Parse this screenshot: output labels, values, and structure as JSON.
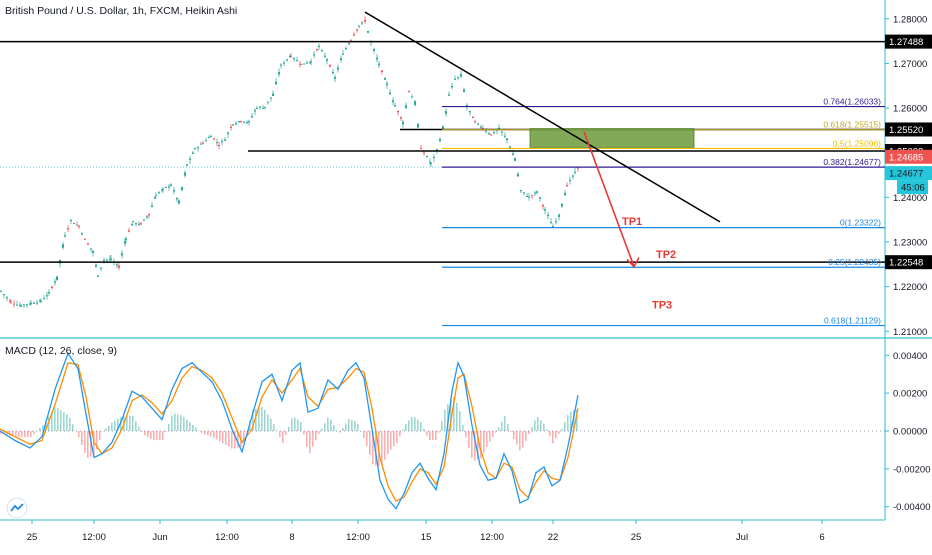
{
  "symbol_title": "British Pound / U.S. Dollar, 1h, FXCM, Heikin Ashi",
  "macd_title": "MACD (12, 26, close, 9)",
  "chart_data": [
    {
      "type": "candlestick",
      "title": "British Pound / U.S. Dollar, 1h, FXCM, Heikin Ashi",
      "x_ticks": [
        "25",
        "12:00",
        "Jun",
        "12:00",
        "8",
        "12:00",
        "15",
        "12:00",
        "22",
        "25",
        "Jul",
        "6"
      ],
      "y_ticks": [
        "1.28000",
        "1.27000",
        "1.26000",
        "1.25000",
        "1.24000",
        "1.23000",
        "1.22000",
        "1.21000"
      ],
      "y_range": [
        1.2085,
        1.2842
      ],
      "candles_path": [
        [
          0,
          1.219
        ],
        [
          10,
          1.2165
        ],
        [
          20,
          1.2158
        ],
        [
          30,
          1.2163
        ],
        [
          40,
          1.2168
        ],
        [
          48,
          1.2185
        ],
        [
          56,
          1.222
        ],
        [
          64,
          1.2315
        ],
        [
          70,
          1.2348
        ],
        [
          78,
          1.2335
        ],
        [
          84,
          1.2305
        ],
        [
          92,
          1.2278
        ],
        [
          97,
          1.2225
        ],
        [
          103,
          1.226
        ],
        [
          110,
          1.2262
        ],
        [
          118,
          1.2245
        ],
        [
          125,
          1.2308
        ],
        [
          132,
          1.2345
        ],
        [
          140,
          1.234
        ],
        [
          148,
          1.2362
        ],
        [
          155,
          1.2405
        ],
        [
          162,
          1.2418
        ],
        [
          170,
          1.2428
        ],
        [
          178,
          1.2388
        ],
        [
          186,
          1.2472
        ],
        [
          194,
          1.2508
        ],
        [
          202,
          1.2522
        ],
        [
          210,
          1.2538
        ],
        [
          218,
          1.2518
        ],
        [
          224,
          1.253
        ],
        [
          232,
          1.2565
        ],
        [
          240,
          1.2572
        ],
        [
          248,
          1.2568
        ],
        [
          256,
          1.2602
        ],
        [
          264,
          1.2602
        ],
        [
          272,
          1.263
        ],
        [
          280,
          1.2695
        ],
        [
          290,
          1.2718
        ],
        [
          300,
          1.2698
        ],
        [
          310,
          1.2705
        ],
        [
          318,
          1.2738
        ],
        [
          326,
          1.2708
        ],
        [
          334,
          1.2668
        ],
        [
          342,
          1.2722
        ],
        [
          350,
          1.2752
        ],
        [
          358,
          1.2785
        ],
        [
          364,
          1.2795
        ],
        [
          370,
          1.2748
        ],
        [
          378,
          1.2698
        ],
        [
          386,
          1.2652
        ],
        [
          394,
          1.2605
        ],
        [
          402,
          1.2568
        ],
        [
          408,
          1.2638
        ],
        [
          414,
          1.2612
        ],
        [
          420,
          1.2508
        ],
        [
          426,
          1.2492
        ],
        [
          430,
          1.2475
        ],
        [
          436,
          1.2505
        ],
        [
          442,
          1.2555
        ],
        [
          448,
          1.2628
        ],
        [
          454,
          1.2665
        ],
        [
          460,
          1.2672
        ],
        [
          466,
          1.2605
        ],
        [
          474,
          1.2568
        ],
        [
          482,
          1.2555
        ],
        [
          490,
          1.254
        ],
        [
          498,
          1.2555
        ],
        [
          506,
          1.253
        ],
        [
          514,
          1.2485
        ],
        [
          520,
          1.2415
        ],
        [
          528,
          1.24
        ],
        [
          536,
          1.2412
        ],
        [
          544,
          1.2372
        ],
        [
          552,
          1.2335
        ],
        [
          558,
          1.236
        ],
        [
          566,
          1.2425
        ],
        [
          574,
          1.2455
        ],
        [
          578,
          1.2468
        ]
      ],
      "horizontal_levels": [
        {
          "price": 1.27488,
          "label": "1.27488"
        },
        {
          "price": 1.2552,
          "label": "1.25520"
        },
        {
          "price": 1.25038,
          "label": "1.25038"
        },
        {
          "price": 1.22548,
          "label": "1.22548"
        }
      ],
      "price_badges": [
        {
          "price": 1.24685,
          "label": "1.24685",
          "color": "#ef5350"
        },
        {
          "price": 1.24677,
          "label": "1.24677",
          "color": "#26c6da"
        }
      ],
      "countdown": "45:06",
      "fib_levels": [
        {
          "label": "0.764(1.26033)",
          "price": 1.26033,
          "color": "#311b92"
        },
        {
          "label": "0.618(1.25515)",
          "price": 1.25515,
          "color": "#c9a227"
        },
        {
          "label": "0.5(1.25096)",
          "price": 1.25096,
          "color": "#f0c000"
        },
        {
          "label": "0.382(1.24677)",
          "price": 1.24677,
          "color": "#311b92"
        },
        {
          "label": "0(1.23322)",
          "price": 1.23322,
          "color": "#1e88e5"
        },
        {
          "label": "0.25(1.22435)",
          "price": 1.22435,
          "color": "#1e88e5"
        },
        {
          "label": "0.618(1.21129)",
          "price": 1.21129,
          "color": "#1e88e5"
        }
      ],
      "targets": [
        "TP1",
        "TP2",
        "TP3"
      ],
      "colors": {
        "up": "#26a69a",
        "down": "#ef5350",
        "zone": "#6b9a3a",
        "arrow": "#e53935",
        "fib_main": "#311b92",
        "fib_ext": "#1e88e5"
      }
    },
    {
      "type": "line",
      "title": "MACD (12, 26, close, 9)",
      "y_ticks": [
        "0.00400",
        "0.00200",
        "0.00000",
        "-0.00200",
        "-0.00400"
      ],
      "y_range": [
        -0.0047,
        0.0047
      ],
      "macd": [
        [
          0,
          0.0
        ],
        [
          15,
          -0.0005
        ],
        [
          30,
          -0.0009
        ],
        [
          42,
          -0.0003
        ],
        [
          55,
          0.0022
        ],
        [
          68,
          0.0041
        ],
        [
          78,
          0.0033
        ],
        [
          86,
          0.0009
        ],
        [
          94,
          -0.0014
        ],
        [
          102,
          -0.0012
        ],
        [
          112,
          -0.0006
        ],
        [
          122,
          0.0006
        ],
        [
          132,
          0.0021
        ],
        [
          142,
          0.0018
        ],
        [
          152,
          0.0012
        ],
        [
          162,
          0.0006
        ],
        [
          172,
          0.0022
        ],
        [
          182,
          0.0033
        ],
        [
          192,
          0.0036
        ],
        [
          202,
          0.0031
        ],
        [
          212,
          0.0026
        ],
        [
          222,
          0.0016
        ],
        [
          232,
          0.0001
        ],
        [
          242,
          -0.0011
        ],
        [
          252,
          0.0008
        ],
        [
          262,
          0.0026
        ],
        [
          272,
          0.003
        ],
        [
          282,
          0.0016
        ],
        [
          292,
          0.0032
        ],
        [
          300,
          0.0036
        ],
        [
          308,
          0.001
        ],
        [
          318,
          0.0012
        ],
        [
          328,
          0.0027
        ],
        [
          338,
          0.0022
        ],
        [
          348,
          0.0032
        ],
        [
          356,
          0.0036
        ],
        [
          364,
          0.0028
        ],
        [
          372,
          0.0001
        ],
        [
          380,
          -0.0026
        ],
        [
          388,
          -0.0036
        ],
        [
          396,
          -0.0041
        ],
        [
          404,
          -0.0033
        ],
        [
          412,
          -0.0022
        ],
        [
          420,
          -0.0017
        ],
        [
          428,
          -0.0025
        ],
        [
          436,
          -0.0031
        ],
        [
          444,
          -0.0012
        ],
        [
          452,
          0.0021
        ],
        [
          458,
          0.0036
        ],
        [
          464,
          0.0029
        ],
        [
          472,
          0.0003
        ],
        [
          480,
          -0.0018
        ],
        [
          488,
          -0.0026
        ],
        [
          496,
          -0.0025
        ],
        [
          504,
          -0.0012
        ],
        [
          512,
          -0.0021
        ],
        [
          520,
          -0.0038
        ],
        [
          528,
          -0.0036
        ],
        [
          536,
          -0.0022
        ],
        [
          544,
          -0.0019
        ],
        [
          552,
          -0.0029
        ],
        [
          560,
          -0.0026
        ],
        [
          568,
          -0.0008
        ],
        [
          574,
          0.0008
        ],
        [
          578,
          0.0019
        ]
      ],
      "signal": [
        [
          0,
          0.0001
        ],
        [
          15,
          -0.0003
        ],
        [
          30,
          -0.0007
        ],
        [
          42,
          -0.0005
        ],
        [
          55,
          0.0014
        ],
        [
          68,
          0.0036
        ],
        [
          78,
          0.0035
        ],
        [
          86,
          0.0018
        ],
        [
          94,
          -0.0006
        ],
        [
          102,
          -0.0012
        ],
        [
          112,
          -0.0009
        ],
        [
          122,
          0.0001
        ],
        [
          132,
          0.0016
        ],
        [
          142,
          0.0019
        ],
        [
          152,
          0.0015
        ],
        [
          162,
          0.0009
        ],
        [
          172,
          0.0016
        ],
        [
          182,
          0.0028
        ],
        [
          192,
          0.0034
        ],
        [
          202,
          0.0032
        ],
        [
          212,
          0.0028
        ],
        [
          222,
          0.002
        ],
        [
          232,
          0.0007
        ],
        [
          242,
          -0.0006
        ],
        [
          252,
          0.0001
        ],
        [
          262,
          0.0018
        ],
        [
          272,
          0.0027
        ],
        [
          282,
          0.002
        ],
        [
          292,
          0.0027
        ],
        [
          300,
          0.0033
        ],
        [
          308,
          0.0018
        ],
        [
          318,
          0.0013
        ],
        [
          328,
          0.0022
        ],
        [
          338,
          0.0023
        ],
        [
          348,
          0.0028
        ],
        [
          356,
          0.0033
        ],
        [
          364,
          0.0031
        ],
        [
          372,
          0.0012
        ],
        [
          380,
          -0.0014
        ],
        [
          388,
          -0.0029
        ],
        [
          396,
          -0.0037
        ],
        [
          404,
          -0.0035
        ],
        [
          412,
          -0.0027
        ],
        [
          420,
          -0.002
        ],
        [
          428,
          -0.0022
        ],
        [
          436,
          -0.0028
        ],
        [
          444,
          -0.0019
        ],
        [
          452,
          0.0009
        ],
        [
          458,
          0.0028
        ],
        [
          464,
          0.003
        ],
        [
          472,
          0.0013
        ],
        [
          480,
          -0.0009
        ],
        [
          488,
          -0.0022
        ],
        [
          496,
          -0.0025
        ],
        [
          504,
          -0.0017
        ],
        [
          512,
          -0.0019
        ],
        [
          520,
          -0.0031
        ],
        [
          528,
          -0.0035
        ],
        [
          536,
          -0.0027
        ],
        [
          544,
          -0.0021
        ],
        [
          552,
          -0.0025
        ],
        [
          560,
          -0.0026
        ],
        [
          568,
          -0.0014
        ],
        [
          574,
          0.0001
        ],
        [
          578,
          0.0012
        ]
      ],
      "colors": {
        "macd": "#2196f3",
        "signal": "#ff8c00",
        "hist_up": "#26a69a",
        "hist_down": "#ef5350"
      }
    }
  ]
}
